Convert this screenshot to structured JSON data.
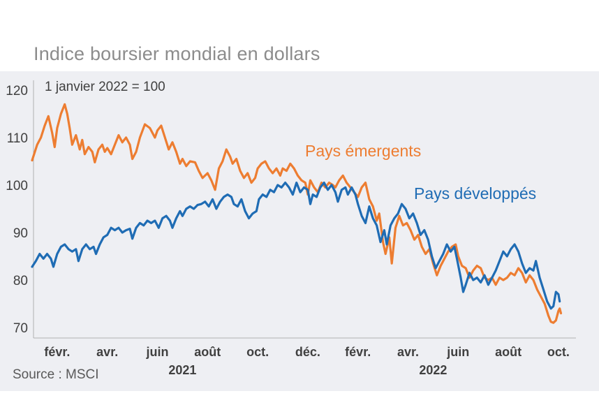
{
  "title": "Indice boursier mondial en dollars",
  "source": "Source : MSCI",
  "chart_data": {
    "type": "line",
    "title": "Indice boursier mondial en dollars",
    "subtitle": "1 janvier 2022 = 100",
    "xlabel": "",
    "ylabel": "",
    "ylim": [
      68,
      121
    ],
    "yticks": [
      70,
      80,
      90,
      100,
      110,
      120
    ],
    "xlim": [
      0,
      21.5
    ],
    "xticks": [
      {
        "x": 1,
        "label": "févr."
      },
      {
        "x": 3,
        "label": "avr."
      },
      {
        "x": 5,
        "label": "juin"
      },
      {
        "x": 7,
        "label": "août"
      },
      {
        "x": 9,
        "label": "oct."
      },
      {
        "x": 11,
        "label": "déc."
      },
      {
        "x": 13,
        "label": "févr."
      },
      {
        "x": 15,
        "label": "avr."
      },
      {
        "x": 17,
        "label": "juin"
      },
      {
        "x": 19,
        "label": "août"
      },
      {
        "x": 21,
        "label": "oct."
      }
    ],
    "year_labels": [
      {
        "x": 6,
        "label": "2021"
      },
      {
        "x": 16,
        "label": "2022"
      }
    ],
    "grid": false,
    "legend": "inline labels",
    "series": [
      {
        "name": "Pays émergents",
        "color": "#ed7d31",
        "points": [
          [
            0.0,
            105.2
          ],
          [
            0.2,
            108.5
          ],
          [
            0.35,
            110.0
          ],
          [
            0.5,
            112.5
          ],
          [
            0.65,
            114.5
          ],
          [
            0.8,
            111.0
          ],
          [
            0.9,
            108.0
          ],
          [
            1.0,
            112.0
          ],
          [
            1.15,
            115.0
          ],
          [
            1.3,
            117.0
          ],
          [
            1.4,
            115.0
          ],
          [
            1.5,
            112.0
          ],
          [
            1.6,
            108.5
          ],
          [
            1.75,
            110.5
          ],
          [
            1.9,
            107.5
          ],
          [
            2.0,
            109.5
          ],
          [
            2.1,
            106.5
          ],
          [
            2.25,
            108.0
          ],
          [
            2.4,
            107.0
          ],
          [
            2.5,
            104.8
          ],
          [
            2.65,
            107.5
          ],
          [
            2.8,
            108.5
          ],
          [
            2.9,
            107.0
          ],
          [
            3.0,
            107.8
          ],
          [
            3.15,
            106.5
          ],
          [
            3.3,
            108.5
          ],
          [
            3.45,
            110.5
          ],
          [
            3.6,
            109.0
          ],
          [
            3.75,
            110.0
          ],
          [
            3.9,
            108.5
          ],
          [
            4.0,
            105.5
          ],
          [
            4.15,
            107.0
          ],
          [
            4.3,
            110.0
          ],
          [
            4.5,
            112.8
          ],
          [
            4.7,
            112.0
          ],
          [
            4.9,
            110.0
          ],
          [
            5.0,
            111.5
          ],
          [
            5.15,
            112.5
          ],
          [
            5.3,
            110.0
          ],
          [
            5.45,
            107.5
          ],
          [
            5.6,
            109.0
          ],
          [
            5.75,
            107.0
          ],
          [
            5.9,
            104.5
          ],
          [
            6.0,
            105.5
          ],
          [
            6.15,
            104.0
          ],
          [
            6.3,
            105.0
          ],
          [
            6.5,
            104.8
          ],
          [
            6.65,
            103.0
          ],
          [
            6.8,
            101.5
          ],
          [
            7.0,
            102.5
          ],
          [
            7.15,
            101.0
          ],
          [
            7.3,
            99.0
          ],
          [
            7.45,
            103.5
          ],
          [
            7.6,
            105.0
          ],
          [
            7.75,
            107.5
          ],
          [
            7.9,
            106.0
          ],
          [
            8.0,
            104.5
          ],
          [
            8.15,
            105.5
          ],
          [
            8.3,
            103.0
          ],
          [
            8.45,
            101.5
          ],
          [
            8.6,
            102.5
          ],
          [
            8.75,
            100.5
          ],
          [
            8.9,
            101.5
          ],
          [
            9.0,
            103.5
          ],
          [
            9.15,
            104.5
          ],
          [
            9.3,
            105.0
          ],
          [
            9.45,
            103.5
          ],
          [
            9.6,
            102.5
          ],
          [
            9.75,
            103.5
          ],
          [
            9.9,
            102.0
          ],
          [
            10.0,
            103.5
          ],
          [
            10.15,
            103.0
          ],
          [
            10.3,
            104.5
          ],
          [
            10.45,
            103.5
          ],
          [
            10.6,
            102.0
          ],
          [
            10.75,
            101.0
          ],
          [
            10.9,
            100.5
          ],
          [
            11.0,
            98.0
          ],
          [
            11.1,
            101.0
          ],
          [
            11.25,
            99.5
          ],
          [
            11.4,
            98.5
          ],
          [
            11.55,
            100.5
          ],
          [
            11.7,
            99.5
          ],
          [
            11.85,
            100.5
          ],
          [
            12.0,
            100.0
          ],
          [
            12.1,
            99.5
          ],
          [
            12.25,
            101.0
          ],
          [
            12.4,
            102.0
          ],
          [
            12.55,
            100.5
          ],
          [
            12.7,
            99.5
          ],
          [
            12.85,
            98.5
          ],
          [
            13.0,
            97.5
          ],
          [
            13.15,
            99.5
          ],
          [
            13.3,
            100.5
          ],
          [
            13.45,
            97.0
          ],
          [
            13.6,
            95.5
          ],
          [
            13.75,
            92.5
          ],
          [
            13.85,
            94.0
          ],
          [
            14.0,
            88.0
          ],
          [
            14.1,
            85.5
          ],
          [
            14.25,
            89.0
          ],
          [
            14.35,
            83.5
          ],
          [
            14.5,
            91.0
          ],
          [
            14.65,
            93.5
          ],
          [
            14.8,
            91.5
          ],
          [
            14.95,
            92.0
          ],
          [
            15.1,
            90.5
          ],
          [
            15.25,
            88.5
          ],
          [
            15.4,
            89.5
          ],
          [
            15.55,
            87.0
          ],
          [
            15.7,
            85.5
          ],
          [
            15.85,
            86.5
          ],
          [
            16.0,
            83.5
          ],
          [
            16.15,
            81.0
          ],
          [
            16.3,
            83.0
          ],
          [
            16.45,
            84.5
          ],
          [
            16.6,
            86.0
          ],
          [
            16.75,
            87.0
          ],
          [
            16.9,
            87.5
          ],
          [
            17.0,
            85.0
          ],
          [
            17.15,
            83.0
          ],
          [
            17.3,
            82.5
          ],
          [
            17.45,
            80.5
          ],
          [
            17.6,
            82.0
          ],
          [
            17.75,
            83.0
          ],
          [
            17.9,
            82.5
          ],
          [
            18.05,
            80.5
          ],
          [
            18.2,
            80.0
          ],
          [
            18.35,
            80.5
          ],
          [
            18.5,
            79.0
          ],
          [
            18.65,
            80.5
          ],
          [
            18.8,
            80.0
          ],
          [
            18.95,
            80.5
          ],
          [
            19.1,
            81.5
          ],
          [
            19.25,
            81.0
          ],
          [
            19.4,
            82.5
          ],
          [
            19.55,
            81.5
          ],
          [
            19.7,
            79.5
          ],
          [
            19.85,
            81.0
          ],
          [
            20.0,
            80.0
          ],
          [
            20.15,
            78.0
          ],
          [
            20.3,
            76.5
          ],
          [
            20.45,
            75.0
          ],
          [
            20.6,
            72.5
          ],
          [
            20.7,
            71.2
          ],
          [
            20.8,
            71.0
          ],
          [
            20.9,
            71.5
          ],
          [
            21.0,
            73.5
          ],
          [
            21.05,
            74.0
          ],
          [
            21.1,
            73.0
          ]
        ]
      },
      {
        "name": "Pays développés",
        "color": "#1f6cb4",
        "points": [
          [
            0.0,
            82.8
          ],
          [
            0.15,
            84.0
          ],
          [
            0.3,
            85.5
          ],
          [
            0.45,
            84.5
          ],
          [
            0.6,
            85.5
          ],
          [
            0.75,
            84.5
          ],
          [
            0.85,
            82.8
          ],
          [
            1.0,
            85.5
          ],
          [
            1.15,
            87.0
          ],
          [
            1.3,
            87.5
          ],
          [
            1.45,
            86.5
          ],
          [
            1.6,
            86.0
          ],
          [
            1.75,
            86.5
          ],
          [
            1.85,
            84.0
          ],
          [
            2.0,
            86.5
          ],
          [
            2.15,
            87.5
          ],
          [
            2.3,
            86.5
          ],
          [
            2.45,
            87.0
          ],
          [
            2.55,
            85.5
          ],
          [
            2.7,
            87.5
          ],
          [
            2.85,
            89.0
          ],
          [
            3.0,
            89.5
          ],
          [
            3.15,
            91.0
          ],
          [
            3.3,
            90.5
          ],
          [
            3.45,
            91.0
          ],
          [
            3.6,
            90.0
          ],
          [
            3.75,
            90.5
          ],
          [
            3.9,
            90.8
          ],
          [
            4.0,
            88.7
          ],
          [
            4.15,
            91.0
          ],
          [
            4.3,
            92.0
          ],
          [
            4.45,
            91.5
          ],
          [
            4.6,
            92.5
          ],
          [
            4.75,
            92.0
          ],
          [
            4.9,
            92.5
          ],
          [
            5.05,
            91.0
          ],
          [
            5.2,
            93.0
          ],
          [
            5.35,
            93.5
          ],
          [
            5.5,
            92.5
          ],
          [
            5.6,
            91.0
          ],
          [
            5.75,
            93.0
          ],
          [
            5.9,
            94.5
          ],
          [
            6.0,
            93.5
          ],
          [
            6.15,
            95.0
          ],
          [
            6.3,
            95.5
          ],
          [
            6.45,
            95.0
          ],
          [
            6.6,
            95.8
          ],
          [
            6.75,
            96.0
          ],
          [
            6.9,
            96.5
          ],
          [
            7.05,
            95.5
          ],
          [
            7.2,
            97.0
          ],
          [
            7.35,
            95.0
          ],
          [
            7.5,
            96.5
          ],
          [
            7.65,
            97.5
          ],
          [
            7.8,
            98.0
          ],
          [
            7.95,
            97.5
          ],
          [
            8.05,
            96.0
          ],
          [
            8.2,
            95.5
          ],
          [
            8.35,
            97.0
          ],
          [
            8.5,
            94.5
          ],
          [
            8.65,
            93.0
          ],
          [
            8.8,
            94.0
          ],
          [
            8.95,
            94.5
          ],
          [
            9.05,
            97.0
          ],
          [
            9.2,
            98.0
          ],
          [
            9.35,
            97.5
          ],
          [
            9.5,
            99.0
          ],
          [
            9.65,
            98.5
          ],
          [
            9.8,
            100.0
          ],
          [
            9.95,
            99.5
          ],
          [
            10.1,
            100.5
          ],
          [
            10.25,
            99.5
          ],
          [
            10.4,
            98.0
          ],
          [
            10.55,
            100.5
          ],
          [
            10.7,
            98.5
          ],
          [
            10.85,
            99.5
          ],
          [
            11.0,
            99.0
          ],
          [
            11.1,
            96.0
          ],
          [
            11.2,
            98.0
          ],
          [
            11.35,
            97.5
          ],
          [
            11.5,
            99.5
          ],
          [
            11.65,
            100.5
          ],
          [
            11.8,
            99.0
          ],
          [
            11.95,
            100.0
          ],
          [
            12.1,
            98.5
          ],
          [
            12.2,
            96.5
          ],
          [
            12.35,
            99.0
          ],
          [
            12.5,
            99.5
          ],
          [
            12.6,
            98.0
          ],
          [
            12.75,
            99.5
          ],
          [
            12.9,
            98.0
          ],
          [
            13.0,
            96.0
          ],
          [
            13.15,
            93.5
          ],
          [
            13.3,
            92.0
          ],
          [
            13.45,
            95.5
          ],
          [
            13.6,
            93.0
          ],
          [
            13.75,
            91.5
          ],
          [
            13.9,
            88.0
          ],
          [
            14.05,
            90.5
          ],
          [
            14.15,
            87.5
          ],
          [
            14.3,
            91.5
          ],
          [
            14.45,
            93.0
          ],
          [
            14.6,
            94.0
          ],
          [
            14.75,
            96.0
          ],
          [
            14.9,
            95.0
          ],
          [
            15.05,
            93.0
          ],
          [
            15.2,
            94.0
          ],
          [
            15.35,
            92.0
          ],
          [
            15.5,
            89.5
          ],
          [
            15.65,
            90.5
          ],
          [
            15.8,
            88.5
          ],
          [
            15.95,
            85.0
          ],
          [
            16.1,
            82.5
          ],
          [
            16.25,
            84.0
          ],
          [
            16.4,
            85.5
          ],
          [
            16.55,
            87.5
          ],
          [
            16.7,
            86.0
          ],
          [
            16.85,
            87.0
          ],
          [
            16.95,
            84.5
          ],
          [
            17.1,
            80.5
          ],
          [
            17.2,
            77.5
          ],
          [
            17.3,
            79.0
          ],
          [
            17.45,
            81.5
          ],
          [
            17.6,
            80.0
          ],
          [
            17.75,
            80.5
          ],
          [
            17.9,
            79.5
          ],
          [
            18.05,
            81.0
          ],
          [
            18.2,
            79.0
          ],
          [
            18.35,
            80.5
          ],
          [
            18.5,
            82.0
          ],
          [
            18.65,
            84.0
          ],
          [
            18.8,
            86.0
          ],
          [
            18.95,
            85.0
          ],
          [
            19.1,
            86.5
          ],
          [
            19.25,
            87.5
          ],
          [
            19.4,
            86.0
          ],
          [
            19.55,
            83.5
          ],
          [
            19.7,
            81.5
          ],
          [
            19.85,
            82.5
          ],
          [
            20.0,
            82.0
          ],
          [
            20.1,
            84.0
          ],
          [
            20.25,
            80.5
          ],
          [
            20.4,
            78.0
          ],
          [
            20.55,
            75.5
          ],
          [
            20.7,
            74.0
          ],
          [
            20.8,
            74.5
          ],
          [
            20.9,
            77.5
          ],
          [
            21.0,
            77.0
          ],
          [
            21.05,
            75.5
          ]
        ]
      }
    ]
  }
}
